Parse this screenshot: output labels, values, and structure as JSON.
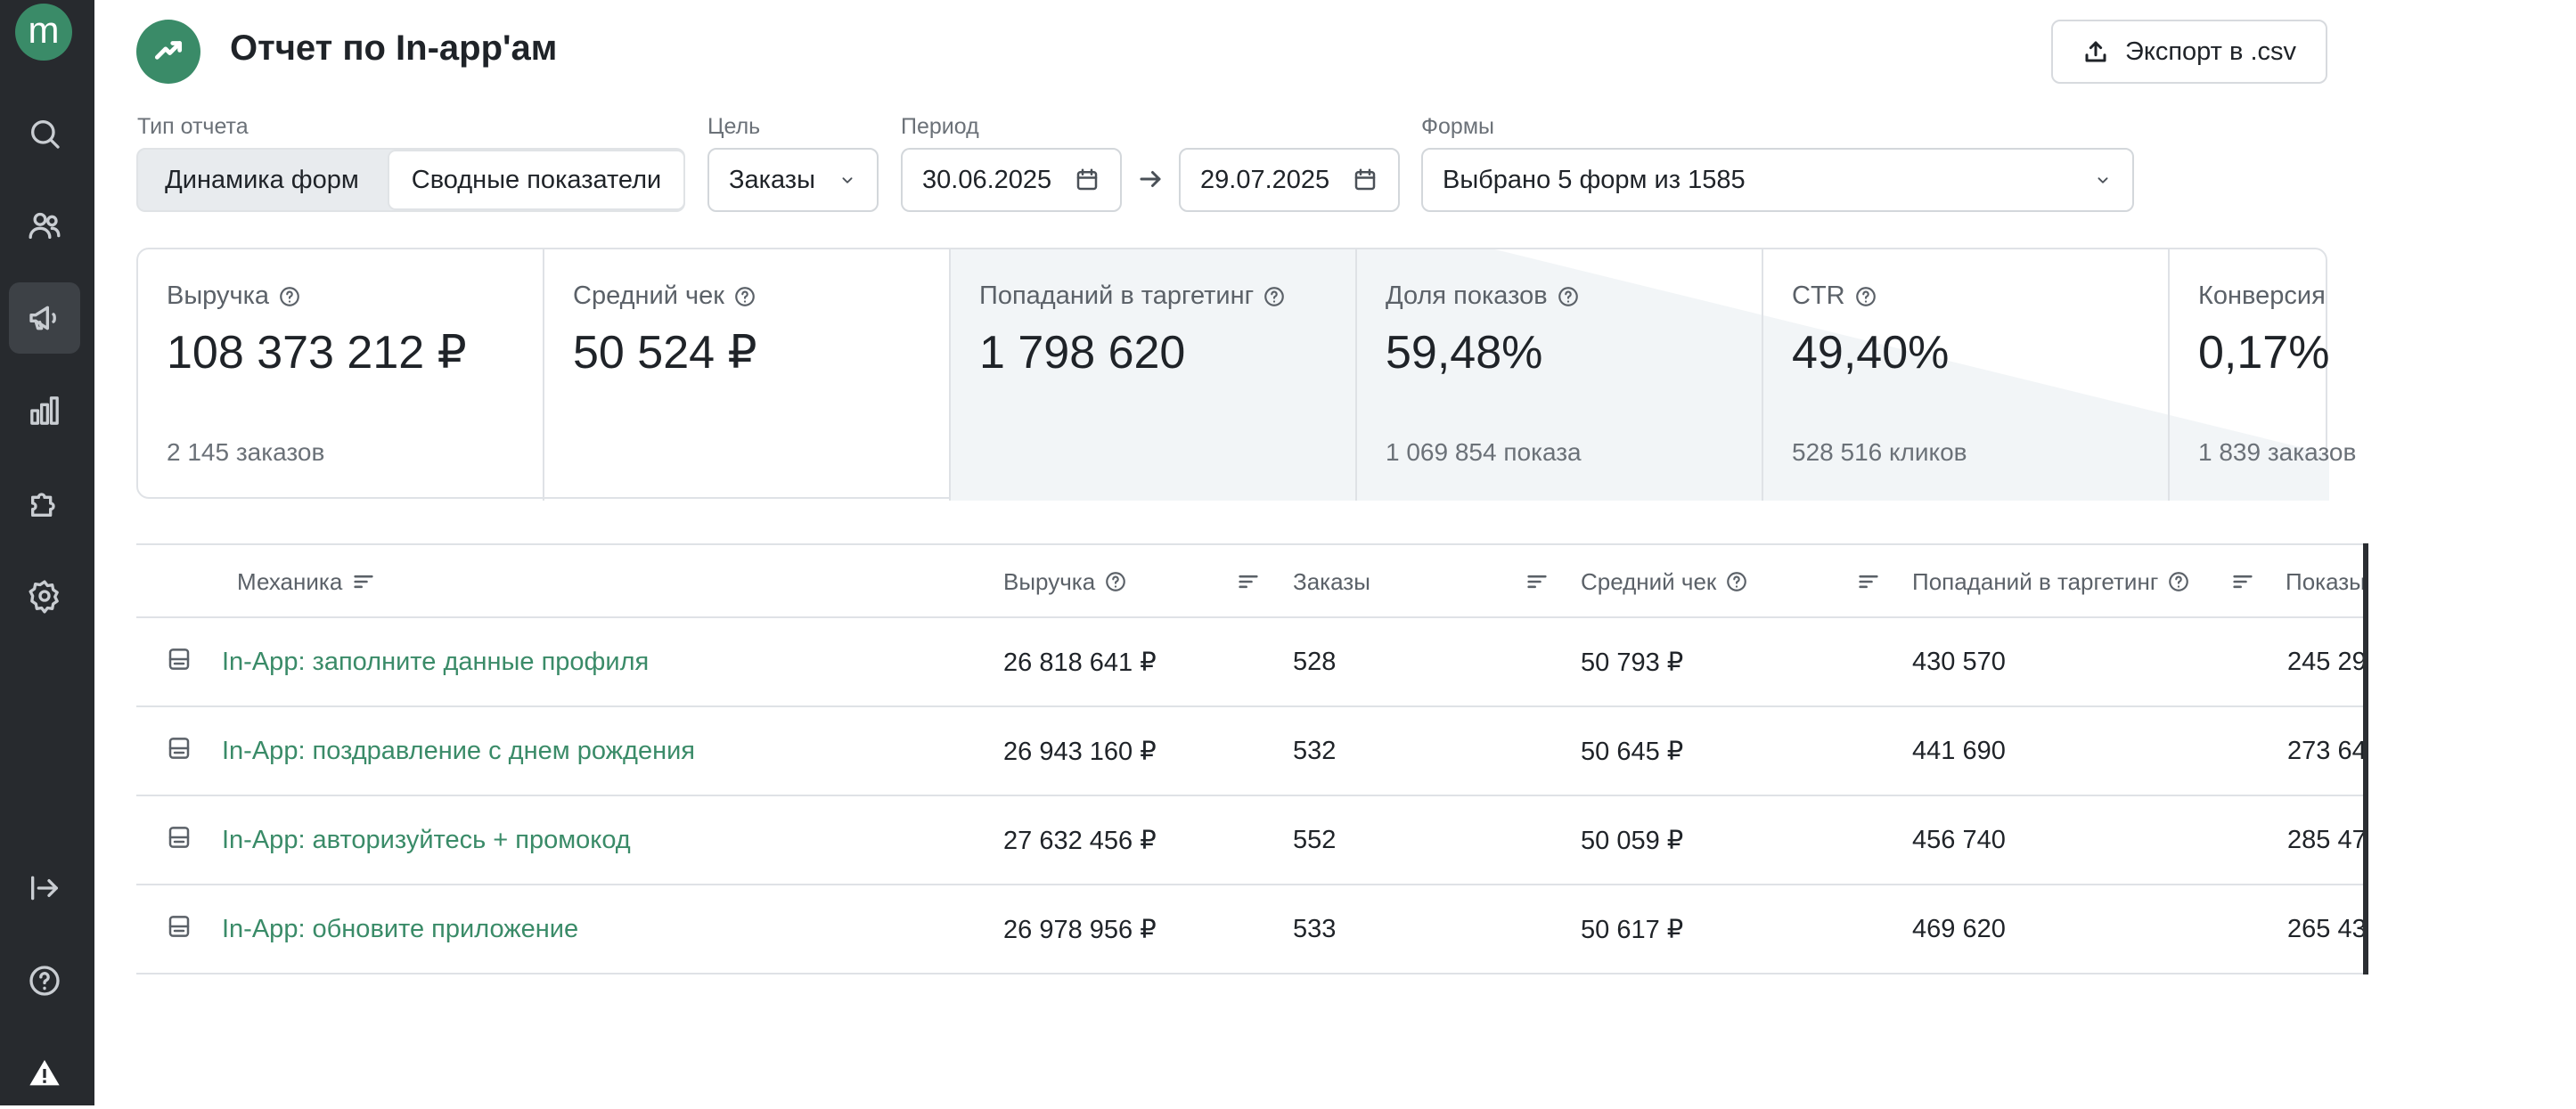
{
  "sidebar": {
    "logo": "m",
    "items": [
      {
        "icon": "search-icon"
      },
      {
        "icon": "users-icon"
      },
      {
        "icon": "megaphone-icon",
        "active": true
      },
      {
        "icon": "bar-chart-icon"
      },
      {
        "icon": "puzzle-icon"
      },
      {
        "icon": "gear-icon"
      },
      {
        "icon": "logout-icon"
      },
      {
        "icon": "help-icon"
      },
      {
        "icon": "warning-icon"
      }
    ]
  },
  "header": {
    "title": "Отчет по In-app'ам",
    "export_label": "Экспорт в .csv"
  },
  "filters": {
    "report_type_label": "Тип отчета",
    "report_type_options": [
      "Динамика форм",
      "Сводные показатели"
    ],
    "goal_label": "Цель",
    "goal_value": "Заказы",
    "period_label": "Период",
    "date_from": "30.06.2025",
    "date_to": "29.07.2025",
    "forms_label": "Формы",
    "forms_value": "Выбрано 5 форм из 1585"
  },
  "metrics": [
    {
      "label": "Выручка",
      "value": "108 373 212 ₽",
      "sub": "2 145 заказов"
    },
    {
      "label": "Средний чек",
      "value": "50 524 ₽",
      "sub": ""
    },
    {
      "label": "Попаданий в таргетинг",
      "value": "1 798 620",
      "sub": ""
    },
    {
      "label": "Доля показов",
      "value": "59,48%",
      "sub": "1 069 854 показа"
    },
    {
      "label": "CTR",
      "value": "49,40%",
      "sub": "528 516 кликов"
    },
    {
      "label": "Конверсия",
      "value": "0,17%",
      "sub": "1 839 заказов"
    }
  ],
  "table": {
    "columns": [
      "Механика",
      "Выручка",
      "Заказы",
      "Средний чек",
      "Попаданий в таргетинг",
      "Показы"
    ],
    "rows": [
      {
        "name": "In-App: заполните данные профиля",
        "revenue": "26 818 641 ₽",
        "orders": "528",
        "avg_check": "50 793 ₽",
        "targeting": "430 570",
        "shows": "245 29"
      },
      {
        "name": "In-App: поздравление с днем рождения",
        "revenue": "26 943 160 ₽",
        "orders": "532",
        "avg_check": "50 645 ₽",
        "targeting": "441 690",
        "shows": "273 64"
      },
      {
        "name": "In-App: авторизуйтесь + промокод",
        "revenue": "27 632 456 ₽",
        "orders": "552",
        "avg_check": "50 059 ₽",
        "targeting": "456 740",
        "shows": "285 47"
      },
      {
        "name": "In-App: обновите приложение",
        "revenue": "26 978 956 ₽",
        "orders": "533",
        "avg_check": "50 617 ₽",
        "targeting": "469 620",
        "shows": "265 43"
      }
    ]
  },
  "colors": {
    "accent": "#3a8b68",
    "sidebar_bg": "#272a2e"
  }
}
